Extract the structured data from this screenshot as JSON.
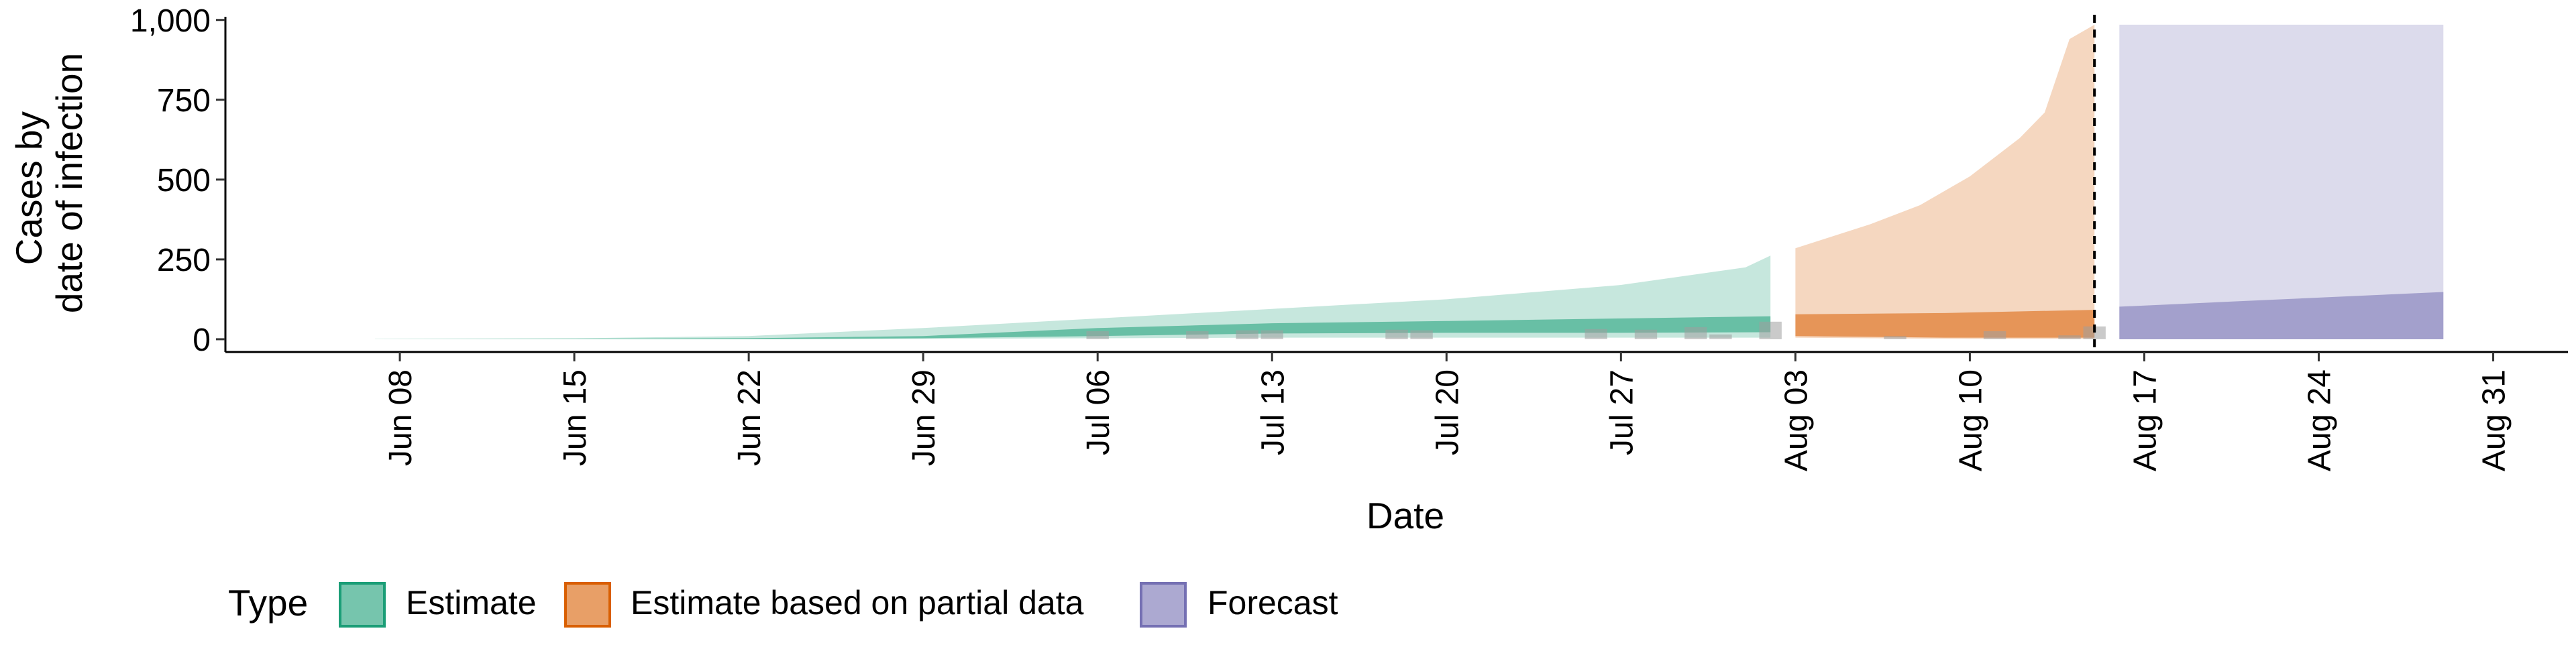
{
  "chart_data": {
    "type": "area",
    "xlabel": "Date",
    "ylabel_lines": [
      "Cases by",
      "date of infection"
    ],
    "x_range": [
      "2020-06-01",
      "2020-09-03"
    ],
    "ylim": [
      -40,
      1010
    ],
    "y_ticks": [
      0,
      250,
      500,
      750,
      1000
    ],
    "y_tick_labels": [
      "0",
      "250",
      "500",
      "750",
      "1,000"
    ],
    "x_ticks": [
      "2020-06-08",
      "2020-06-15",
      "2020-06-22",
      "2020-06-29",
      "2020-07-06",
      "2020-07-13",
      "2020-07-20",
      "2020-07-27",
      "2020-08-03",
      "2020-08-10",
      "2020-08-17",
      "2020-08-24",
      "2020-08-31"
    ],
    "x_tick_labels": [
      "Jun 08",
      "Jun 15",
      "Jun 22",
      "Jun 29",
      "Jul 06",
      "Jul 13",
      "Jul 20",
      "Jul 27",
      "Aug 03",
      "Aug 10",
      "Aug 17",
      "Aug 24",
      "Aug 31"
    ],
    "grid": false,
    "legend": {
      "title": "Type",
      "position": "bottom",
      "entries": [
        {
          "label": "Estimate",
          "fill": "#1b9e77",
          "border": "#1b9e77"
        },
        {
          "label": "Estimate based on partial data",
          "fill": "#d95f02",
          "border": "#d95f02"
        },
        {
          "label": "Forecast",
          "fill": "#7570b3",
          "border": "#7570b3"
        }
      ]
    },
    "vline": {
      "x": "2020-08-15",
      "style": "dashed",
      "color": "#000000"
    },
    "series": [
      {
        "name": "Estimate",
        "color": "#1b9e77",
        "outer_band": [
          {
            "x": "2020-06-07",
            "lo": 0,
            "hi": 1
          },
          {
            "x": "2020-06-15",
            "lo": 0,
            "hi": 3
          },
          {
            "x": "2020-06-22",
            "lo": 0,
            "hi": 10
          },
          {
            "x": "2020-06-29",
            "lo": 1,
            "hi": 35
          },
          {
            "x": "2020-07-06",
            "lo": 3,
            "hi": 65
          },
          {
            "x": "2020-07-13",
            "lo": 5,
            "hi": 95
          },
          {
            "x": "2020-07-20",
            "lo": 5,
            "hi": 125
          },
          {
            "x": "2020-07-27",
            "lo": 5,
            "hi": 170
          },
          {
            "x": "2020-08-01",
            "lo": 5,
            "hi": 225
          },
          {
            "x": "2020-08-02",
            "lo": 5,
            "hi": 262
          }
        ],
        "inner_band": [
          {
            "x": "2020-06-07",
            "lo": 0,
            "hi": 0
          },
          {
            "x": "2020-06-15",
            "lo": 0,
            "hi": 1
          },
          {
            "x": "2020-06-22",
            "lo": 0,
            "hi": 3
          },
          {
            "x": "2020-06-29",
            "lo": 3,
            "hi": 10
          },
          {
            "x": "2020-07-06",
            "lo": 10,
            "hi": 35
          },
          {
            "x": "2020-07-13",
            "lo": 18,
            "hi": 50
          },
          {
            "x": "2020-07-20",
            "lo": 20,
            "hi": 57
          },
          {
            "x": "2020-07-27",
            "lo": 20,
            "hi": 65
          },
          {
            "x": "2020-08-02",
            "lo": 22,
            "hi": 72
          }
        ]
      },
      {
        "name": "Estimate based on partial data",
        "color": "#d95f02",
        "outer_band": [
          {
            "x": "2020-08-03",
            "lo": 5,
            "hi": 285
          },
          {
            "x": "2020-08-06",
            "lo": 3,
            "hi": 360
          },
          {
            "x": "2020-08-08",
            "lo": 2,
            "hi": 420
          },
          {
            "x": "2020-08-10",
            "lo": 1,
            "hi": 510
          },
          {
            "x": "2020-08-12",
            "lo": 1,
            "hi": 630
          },
          {
            "x": "2020-08-13",
            "lo": 1,
            "hi": 710
          },
          {
            "x": "2020-08-14",
            "lo": 1,
            "hi": 940
          },
          {
            "x": "2020-08-15",
            "lo": 1,
            "hi": 985
          }
        ],
        "inner_band": [
          {
            "x": "2020-08-03",
            "lo": 10,
            "hi": 78
          },
          {
            "x": "2020-08-09",
            "lo": 5,
            "hi": 82
          },
          {
            "x": "2020-08-15",
            "lo": 5,
            "hi": 92
          }
        ]
      },
      {
        "name": "Forecast",
        "color": "#7570b3",
        "outer_band": [
          {
            "x": "2020-08-16",
            "lo": 0,
            "hi": 985
          },
          {
            "x": "2020-08-29",
            "lo": 0,
            "hi": 985
          }
        ],
        "inner_band": [
          {
            "x": "2020-08-16",
            "lo": 0,
            "hi": 102
          },
          {
            "x": "2020-08-29",
            "lo": 0,
            "hi": 148
          }
        ]
      }
    ],
    "reported_cases": [
      {
        "x": "2020-07-06",
        "y": 25
      },
      {
        "x": "2020-07-10",
        "y": 25
      },
      {
        "x": "2020-07-12",
        "y": 28
      },
      {
        "x": "2020-07-13",
        "y": 28
      },
      {
        "x": "2020-07-18",
        "y": 30
      },
      {
        "x": "2020-07-19",
        "y": 28
      },
      {
        "x": "2020-07-26",
        "y": 32
      },
      {
        "x": "2020-07-28",
        "y": 30
      },
      {
        "x": "2020-07-30",
        "y": 38
      },
      {
        "x": "2020-07-31",
        "y": 15
      },
      {
        "x": "2020-08-02",
        "y": 55
      },
      {
        "x": "2020-08-07",
        "y": 10
      },
      {
        "x": "2020-08-11",
        "y": 25
      },
      {
        "x": "2020-08-14",
        "y": 12
      },
      {
        "x": "2020-08-15",
        "y": 40
      }
    ]
  }
}
